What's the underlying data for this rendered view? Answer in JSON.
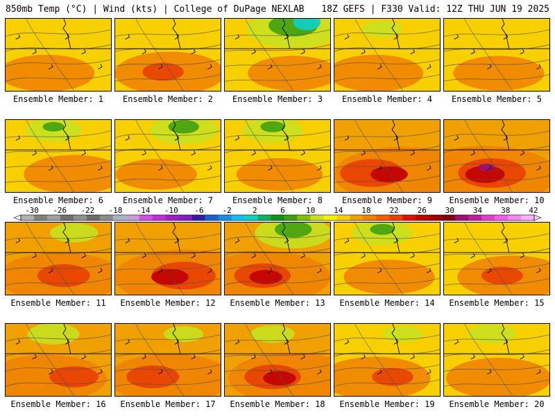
{
  "header": {
    "left": "850mb Temp (°C) | Wind (kts) | College of DuPage NEXLAB",
    "right": "18Z GEFS | F330 Valid: 12Z THU JUN 19 2025"
  },
  "member_label_prefix": "Ensemble Member:",
  "members": [
    {
      "id": 1,
      "warmth": 0.4,
      "cool": 0.05
    },
    {
      "id": 2,
      "warmth": 0.55,
      "cool": 0.05
    },
    {
      "id": 3,
      "warmth": 0.35,
      "cool": 0.8
    },
    {
      "id": 4,
      "warmth": 0.4,
      "cool": 0.15
    },
    {
      "id": 5,
      "warmth": 0.35,
      "cool": 0.1
    },
    {
      "id": 6,
      "warmth": 0.45,
      "cool": 0.35
    },
    {
      "id": 7,
      "warmth": 0.25,
      "cool": 0.5
    },
    {
      "id": 8,
      "warmth": 0.3,
      "cool": 0.4
    },
    {
      "id": 9,
      "warmth": 0.85,
      "cool": 0.05
    },
    {
      "id": 10,
      "warmth": 0.9,
      "cool": 0.05
    },
    {
      "id": 11,
      "warmth": 0.7,
      "cool": 0.25
    },
    {
      "id": 12,
      "warmth": 0.85,
      "cool": 0.05
    },
    {
      "id": 13,
      "warmth": 0.75,
      "cool": 0.6
    },
    {
      "id": 14,
      "warmth": 0.35,
      "cool": 0.4
    },
    {
      "id": 15,
      "warmth": 0.55,
      "cool": 0.1
    },
    {
      "id": 16,
      "warmth": 0.65,
      "cool": 0.3
    },
    {
      "id": 17,
      "warmth": 0.7,
      "cool": 0.15
    },
    {
      "id": 18,
      "warmth": 0.75,
      "cool": 0.2
    },
    {
      "id": 19,
      "warmth": 0.55,
      "cool": 0.15
    },
    {
      "id": 20,
      "warmth": 0.5,
      "cool": 0.25
    }
  ],
  "colorbar": {
    "ticks": [
      "-30",
      "-26",
      "-22",
      "-18",
      "-14",
      "-10",
      "-6",
      "-2",
      "2",
      "6",
      "10",
      "14",
      "18",
      "22",
      "26",
      "30",
      "34",
      "38",
      "42"
    ],
    "colors": [
      "#b0b0b0",
      "#808080",
      "#a0a0a0",
      "#707070",
      "#909090",
      "#6c6c6c",
      "#8c8c8c",
      "#a8b4c8",
      "#c8a0d8",
      "#d050e0",
      "#c030d0",
      "#a020c0",
      "#8020c0",
      "#3020a0",
      "#2060d0",
      "#1890e0",
      "#10c0e8",
      "#10d0c0",
      "#10b060",
      "#109020",
      "#40a010",
      "#80c010",
      "#c8e020",
      "#f0f000",
      "#f8d000",
      "#f0a000",
      "#f08000",
      "#f06000",
      "#e84000",
      "#e01010",
      "#c00000",
      "#a00000",
      "#800010",
      "#a01070",
      "#c020a0",
      "#e040c8",
      "#f060e0",
      "#f088f0",
      "#f8b0f8"
    ]
  }
}
